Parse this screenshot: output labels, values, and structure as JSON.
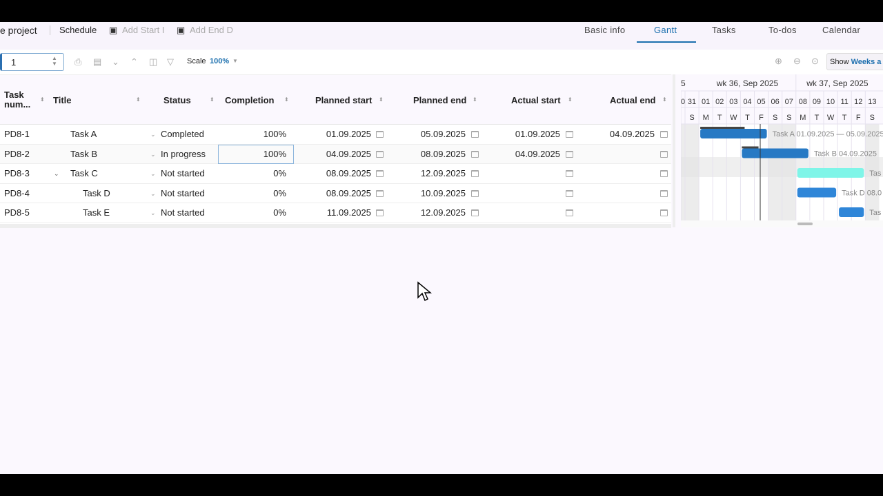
{
  "header": {
    "project": "e project",
    "schedule": "Schedule",
    "add_start": "Add Start I",
    "add_end": "Add End D",
    "tabs": [
      {
        "label": "Basic info"
      },
      {
        "label": "Gantt",
        "active": true
      },
      {
        "label": "Tasks"
      },
      {
        "label": "To-dos"
      },
      {
        "label": "Calendar"
      }
    ]
  },
  "toolbar": {
    "level_value": "1",
    "scale_label": "Scale",
    "scale_value": "100%",
    "show_label": "Show",
    "show_value": "Weeks a"
  },
  "columns": [
    "Task num...",
    "Title",
    "Status",
    "Completion",
    "Planned start",
    "Planned end",
    "Actual start",
    "Actual end"
  ],
  "rows": [
    {
      "num": "PD8-1",
      "title": "Task A",
      "status": "Completed",
      "completion": "100%",
      "pstart": "01.09.2025",
      "pend": "05.09.2025",
      "astart": "01.09.2025",
      "aend": "04.09.2025"
    },
    {
      "num": "PD8-2",
      "title": "Task B",
      "status": "In progress",
      "completion": "100%",
      "pstart": "04.09.2025",
      "pend": "08.09.2025",
      "astart": "04.09.2025",
      "aend": ""
    },
    {
      "num": "PD8-3",
      "title": "Task C",
      "status": "Not started",
      "completion": "0%",
      "pstart": "08.09.2025",
      "pend": "12.09.2025",
      "astart": "",
      "aend": ""
    },
    {
      "num": "PD8-4",
      "title": "Task D",
      "status": "Not started",
      "completion": "0%",
      "pstart": "08.09.2025",
      "pend": "10.09.2025",
      "astart": "",
      "aend": ""
    },
    {
      "num": "PD8-5",
      "title": "Task E",
      "status": "Not started",
      "completion": "0%",
      "pstart": "11.09.2025",
      "pend": "12.09.2025",
      "astart": "",
      "aend": ""
    }
  ],
  "gantt": {
    "weeks": [
      "5",
      "wk 36, Sep 2025",
      "wk 37, Sep 2025"
    ],
    "days": [
      "0",
      "31",
      "01",
      "02",
      "03",
      "04",
      "05",
      "06",
      "07",
      "08",
      "09",
      "10",
      "11",
      "12",
      "13"
    ],
    "weekdays": [
      "",
      "S",
      "M",
      "T",
      "W",
      "T",
      "F",
      "S",
      "S",
      "M",
      "T",
      "W",
      "T",
      "F",
      "S"
    ],
    "bar_labels": [
      "Task A 01.09.2025 — 05.09.2025",
      "Task B 04.09.2025",
      "Tas",
      "Task D 08.0",
      "Tas"
    ],
    "colors": {
      "bar": "#2f86d8",
      "bar_dark": "#2779c4",
      "bar_light": "#7ff5e8",
      "progress": "#444"
    }
  }
}
